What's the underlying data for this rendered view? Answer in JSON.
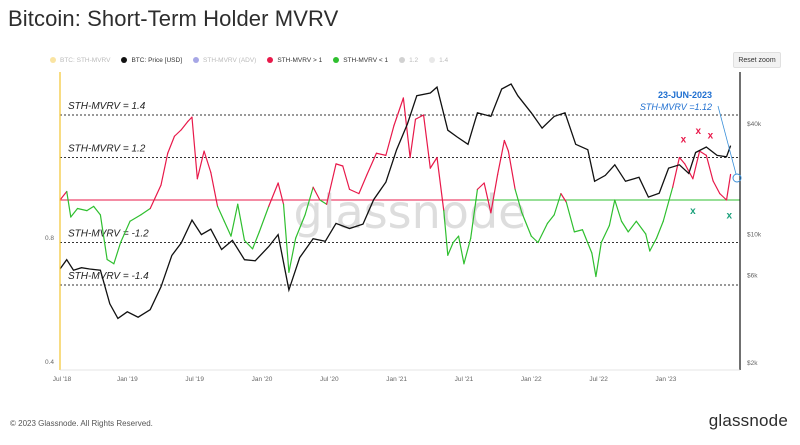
{
  "header": {
    "title": "Bitcoin: Short-Term Holder MVRV"
  },
  "legend": [
    {
      "label": "BTC: STH-MVRV",
      "color": "#f4c430",
      "faded": true
    },
    {
      "label": "BTC: Price [USD]",
      "color": "#111111",
      "faded": false
    },
    {
      "label": "STH-MVRV (ADV)",
      "color": "#3c3cc8",
      "faded": true
    },
    {
      "label": "STH-MVRV > 1",
      "color": "#e8194a",
      "faded": false
    },
    {
      "label": "STH-MVRV < 1",
      "color": "#2fbf2f",
      "faded": false
    },
    {
      "label": "1.2",
      "color": "#999999",
      "faded": true
    },
    {
      "label": "1.4",
      "color": "#cccccc",
      "faded": true
    }
  ],
  "toolbar": {
    "reset_label": "Reset zoom"
  },
  "watermark": "glassnode",
  "annotation": {
    "date": "23-JUN-2023",
    "value": "STH-MVRV =1.12"
  },
  "footer": {
    "copyright": "© 2023 Glassnode. All Rights Reserved.",
    "logo": "glassnode"
  },
  "chart_data": {
    "type": "line",
    "x_tick_labels": [
      "Jul '18",
      "Jan '19",
      "Jul '19",
      "Jan '20",
      "Jul '20",
      "Jan '21",
      "Jul '21",
      "Jan '22",
      "Jul '22",
      "Jan '23"
    ],
    "left_axis_labels": [
      "0.8",
      "0.4"
    ],
    "right_axis_labels": [
      "$40k",
      "$10k",
      "$6k",
      "$2k"
    ],
    "reference_lines": [
      {
        "label": "STH-MVRV = 1.4",
        "value": 1.4
      },
      {
        "label": "STH-MVRV = 1.2",
        "value": 1.2
      },
      {
        "label": "",
        "value": 1.0
      },
      {
        "label": "STH-MVRV = -1.2",
        "value": 0.8
      },
      {
        "label": "STH-MVRV = -1.4",
        "value": 0.6
      }
    ],
    "price_series": {
      "name": "BTC: Price [USD]",
      "color": "#111111",
      "points": [
        [
          2018.5,
          6500
        ],
        [
          2018.55,
          7300
        ],
        [
          2018.6,
          6400
        ],
        [
          2018.66,
          6600
        ],
        [
          2018.72,
          6500
        ],
        [
          2018.8,
          6400
        ],
        [
          2018.87,
          4200
        ],
        [
          2018.93,
          3500
        ],
        [
          2019.0,
          3800
        ],
        [
          2019.08,
          3550
        ],
        [
          2019.17,
          3900
        ],
        [
          2019.25,
          5200
        ],
        [
          2019.33,
          7700
        ],
        [
          2019.4,
          9000
        ],
        [
          2019.48,
          12000
        ],
        [
          2019.55,
          10000
        ],
        [
          2019.62,
          10700
        ],
        [
          2019.7,
          8300
        ],
        [
          2019.78,
          9300
        ],
        [
          2019.87,
          7300
        ],
        [
          2019.95,
          7200
        ],
        [
          2020.05,
          8600
        ],
        [
          2020.12,
          10000
        ],
        [
          2020.2,
          5000
        ],
        [
          2020.28,
          7500
        ],
        [
          2020.38,
          9500
        ],
        [
          2020.47,
          9200
        ],
        [
          2020.55,
          11500
        ],
        [
          2020.65,
          10800
        ],
        [
          2020.75,
          11400
        ],
        [
          2020.83,
          15500
        ],
        [
          2020.92,
          19300
        ],
        [
          2021.0,
          29000
        ],
        [
          2021.08,
          40000
        ],
        [
          2021.15,
          57000
        ],
        [
          2021.25,
          59000
        ],
        [
          2021.3,
          63500
        ],
        [
          2021.38,
          37000
        ],
        [
          2021.45,
          34000
        ],
        [
          2021.53,
          31000
        ],
        [
          2021.6,
          46000
        ],
        [
          2021.7,
          44000
        ],
        [
          2021.78,
          62000
        ],
        [
          2021.85,
          66000
        ],
        [
          2021.9,
          57000
        ],
        [
          2022.0,
          46000
        ],
        [
          2022.08,
          38000
        ],
        [
          2022.17,
          44000
        ],
        [
          2022.25,
          46000
        ],
        [
          2022.33,
          31000
        ],
        [
          2022.42,
          29000
        ],
        [
          2022.47,
          19500
        ],
        [
          2022.55,
          21000
        ],
        [
          2022.62,
          24000
        ],
        [
          2022.7,
          19500
        ],
        [
          2022.8,
          20500
        ],
        [
          2022.87,
          16000
        ],
        [
          2022.95,
          16800
        ],
        [
          2023.02,
          23000
        ],
        [
          2023.1,
          24000
        ],
        [
          2023.17,
          21500
        ],
        [
          2023.22,
          28000
        ],
        [
          2023.3,
          30000
        ],
        [
          2023.38,
          27000
        ],
        [
          2023.45,
          26500
        ],
        [
          2023.48,
          30500
        ]
      ]
    },
    "mvrv_series": {
      "name": "BTC: STH-MVRV",
      "above_color": "#e8194a",
      "below_color": "#2fbf2f",
      "points": [
        [
          2018.5,
          1.0
        ],
        [
          2018.55,
          1.04
        ],
        [
          2018.58,
          0.92
        ],
        [
          2018.63,
          0.96
        ],
        [
          2018.7,
          0.95
        ],
        [
          2018.75,
          0.97
        ],
        [
          2018.8,
          0.93
        ],
        [
          2018.85,
          0.72
        ],
        [
          2018.9,
          0.7
        ],
        [
          2018.95,
          0.8
        ],
        [
          2019.02,
          0.9
        ],
        [
          2019.1,
          0.93
        ],
        [
          2019.17,
          0.96
        ],
        [
          2019.25,
          1.07
        ],
        [
          2019.3,
          1.22
        ],
        [
          2019.35,
          1.3
        ],
        [
          2019.4,
          1.33
        ],
        [
          2019.45,
          1.37
        ],
        [
          2019.48,
          1.39
        ],
        [
          2019.52,
          1.1
        ],
        [
          2019.57,
          1.23
        ],
        [
          2019.62,
          1.13
        ],
        [
          2019.67,
          0.97
        ],
        [
          2019.72,
          0.9
        ],
        [
          2019.77,
          0.83
        ],
        [
          2019.82,
          0.98
        ],
        [
          2019.87,
          0.81
        ],
        [
          2019.93,
          0.77
        ],
        [
          2019.98,
          0.85
        ],
        [
          2020.05,
          0.97
        ],
        [
          2020.12,
          1.08
        ],
        [
          2020.16,
          0.98
        ],
        [
          2020.2,
          0.66
        ],
        [
          2020.25,
          0.82
        ],
        [
          2020.32,
          0.93
        ],
        [
          2020.38,
          1.06
        ],
        [
          2020.43,
          1.0
        ],
        [
          2020.48,
          0.98
        ],
        [
          2020.55,
          1.17
        ],
        [
          2020.6,
          1.16
        ],
        [
          2020.65,
          1.05
        ],
        [
          2020.72,
          1.03
        ],
        [
          2020.78,
          1.12
        ],
        [
          2020.85,
          1.22
        ],
        [
          2020.92,
          1.21
        ],
        [
          2020.98,
          1.35
        ],
        [
          2021.05,
          1.48
        ],
        [
          2021.1,
          1.2
        ],
        [
          2021.14,
          1.38
        ],
        [
          2021.2,
          1.4
        ],
        [
          2021.25,
          1.15
        ],
        [
          2021.3,
          1.2
        ],
        [
          2021.35,
          0.95
        ],
        [
          2021.38,
          0.74
        ],
        [
          2021.42,
          0.8
        ],
        [
          2021.46,
          0.83
        ],
        [
          2021.5,
          0.7
        ],
        [
          2021.55,
          0.82
        ],
        [
          2021.6,
          1.05
        ],
        [
          2021.65,
          1.08
        ],
        [
          2021.7,
          0.94
        ],
        [
          2021.75,
          1.12
        ],
        [
          2021.8,
          1.28
        ],
        [
          2021.83,
          1.23
        ],
        [
          2021.88,
          1.05
        ],
        [
          2021.93,
          0.94
        ],
        [
          2022.0,
          0.83
        ],
        [
          2022.05,
          0.8
        ],
        [
          2022.12,
          0.89
        ],
        [
          2022.17,
          0.93
        ],
        [
          2022.22,
          1.03
        ],
        [
          2022.26,
          0.99
        ],
        [
          2022.32,
          0.85
        ],
        [
          2022.38,
          0.86
        ],
        [
          2022.45,
          0.75
        ],
        [
          2022.48,
          0.64
        ],
        [
          2022.52,
          0.8
        ],
        [
          2022.58,
          0.88
        ],
        [
          2022.62,
          1.0
        ],
        [
          2022.67,
          0.9
        ],
        [
          2022.72,
          0.85
        ],
        [
          2022.78,
          0.9
        ],
        [
          2022.85,
          0.84
        ],
        [
          2022.88,
          0.76
        ],
        [
          2022.93,
          0.82
        ],
        [
          2022.98,
          0.9
        ],
        [
          2023.05,
          1.06
        ],
        [
          2023.1,
          1.2
        ],
        [
          2023.14,
          1.17
        ],
        [
          2023.2,
          1.1
        ],
        [
          2023.25,
          1.23
        ],
        [
          2023.3,
          1.21
        ],
        [
          2023.35,
          1.09
        ],
        [
          2023.4,
          1.03
        ],
        [
          2023.45,
          1.0
        ],
        [
          2023.48,
          1.12
        ]
      ]
    },
    "sell_markers": [
      [
        2023.13,
        1.27
      ],
      [
        2023.24,
        1.31
      ],
      [
        2023.33,
        1.29
      ]
    ],
    "buy_markers": [
      [
        2023.2,
        0.99
      ],
      [
        2023.47,
        0.97
      ]
    ]
  }
}
